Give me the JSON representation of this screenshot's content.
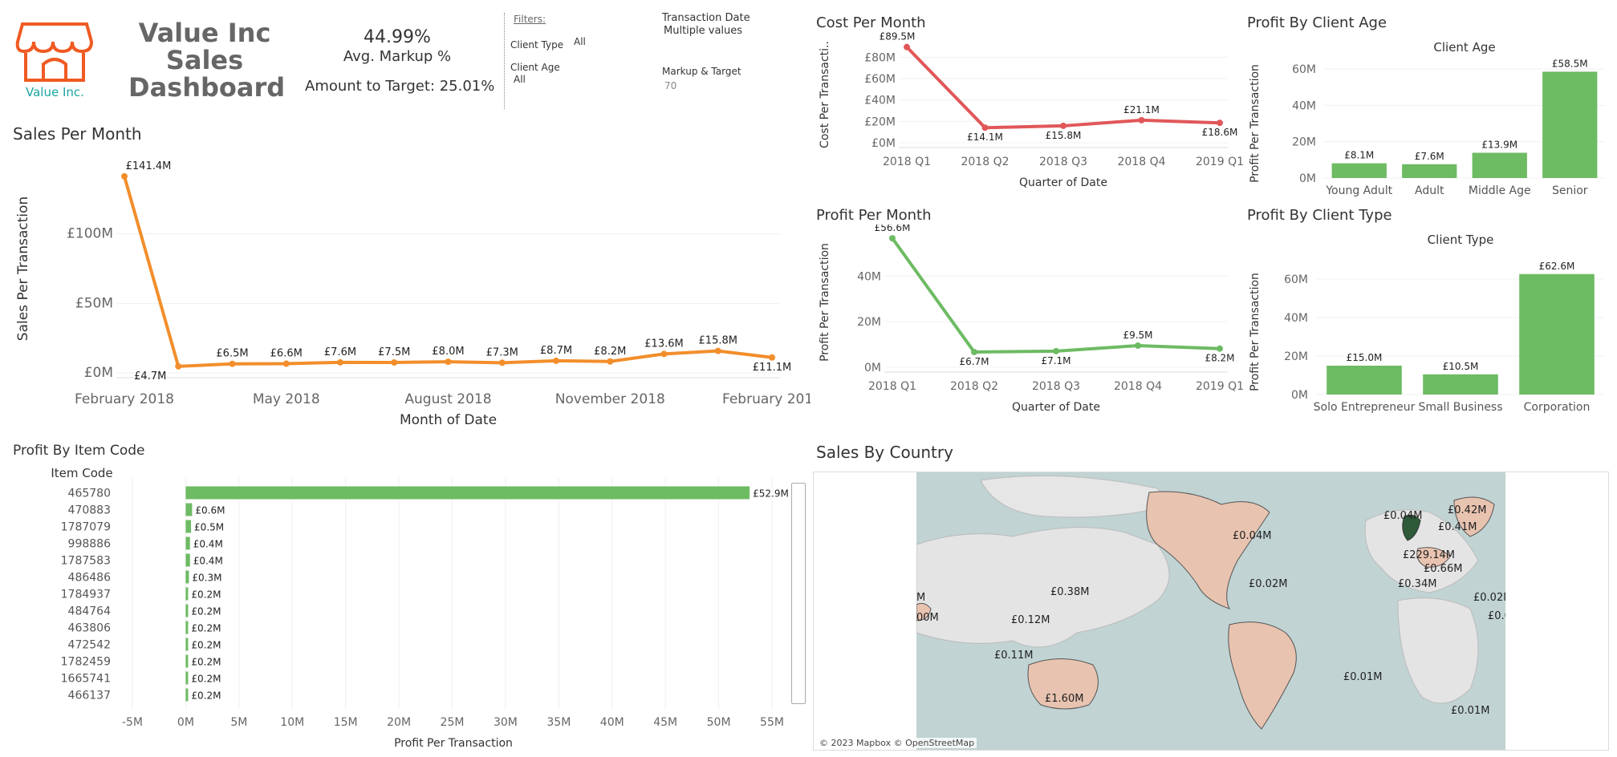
{
  "header": {
    "logo_text": "Value Inc.",
    "title_lines": [
      "Value Inc",
      "Sales",
      "Dashboard"
    ],
    "avg_markup_value": "44.99%",
    "avg_markup_label": "Avg. Markup %",
    "amount_to_target": "Amount to Target: 25.01%"
  },
  "filters": {
    "heading": "Filters:",
    "client_type_label": "Client Type",
    "client_type_value": "All",
    "client_age_label": "Client Age",
    "client_age_value": "All",
    "transaction_date_label": "Transaction Date",
    "transaction_date_value": "Multiple values",
    "markup_target_label": "Markup & Target",
    "markup_target_value": "70"
  },
  "colors": {
    "orange": "#f28e2b",
    "red": "#e15759",
    "green": "#6dbb63",
    "land": "#e8c3b0",
    "sea": "#c1d3d3",
    "dark_land": "#2e5a3a"
  },
  "chart_data": [
    {
      "id": "sales",
      "type": "line",
      "title": "Sales Per Month",
      "xlabel": "Month of Date",
      "ylabel": "Sales Per Transaction",
      "x": [
        "2018-02",
        "2018-03",
        "2018-04",
        "2018-05",
        "2018-06",
        "2018-07",
        "2018-08",
        "2018-09",
        "2018-10",
        "2018-11",
        "2018-12",
        "2019-01",
        "2019-02"
      ],
      "tick_labels": [
        "February 2018",
        "May 2018",
        "August 2018",
        "November 2018",
        "February 2019"
      ],
      "values": [
        141.4,
        4.7,
        6.5,
        6.6,
        7.6,
        7.5,
        8.0,
        7.3,
        8.7,
        8.2,
        13.6,
        15.8,
        11.1
      ],
      "point_labels": [
        "£141.4M",
        "£4.7M",
        "£6.5M",
        "£6.6M",
        "£7.6M",
        "£7.5M",
        "£8.0M",
        "£7.3M",
        "£8.7M",
        "£8.2M",
        "£13.6M",
        "£15.8M",
        "£11.1M"
      ],
      "yticks": [
        "£0M",
        "£50M",
        "£100M"
      ],
      "ylim": [
        0,
        150
      ]
    },
    {
      "id": "cost",
      "type": "line",
      "title": "Cost Per Month",
      "xlabel": "Quarter of Date",
      "ylabel": "Cost Per Transacti..",
      "categories": [
        "2018 Q1",
        "2018 Q2",
        "2018 Q3",
        "2018 Q4",
        "2019 Q1"
      ],
      "values": [
        89.5,
        14.1,
        15.8,
        21.1,
        18.6
      ],
      "point_labels": [
        "£89.5M",
        "£14.1M",
        "£15.8M",
        "£21.1M",
        "£18.6M"
      ],
      "yticks": [
        "£0M",
        "£20M",
        "£40M",
        "£60M",
        "£80M"
      ],
      "ylim": [
        0,
        90
      ]
    },
    {
      "id": "profit_month",
      "type": "line",
      "title": "Profit Per Month",
      "xlabel": "Quarter of Date",
      "ylabel": "Profit Per Transaction",
      "categories": [
        "2018 Q1",
        "2018 Q2",
        "2018 Q3",
        "2018 Q4",
        "2019 Q1"
      ],
      "values": [
        56.6,
        6.7,
        7.1,
        9.5,
        8.2
      ],
      "point_labels": [
        "£56.6M",
        "£6.7M",
        "£7.1M",
        "£9.5M",
        "£8.2M"
      ],
      "yticks": [
        "0M",
        "20M",
        "40M"
      ],
      "ylim": [
        0,
        57
      ]
    },
    {
      "id": "client_age",
      "type": "bar",
      "title": "Profit By Client Age",
      "header": "Client Age",
      "ylabel": "Profit Per Transaction",
      "categories": [
        "Young Adult",
        "Adult",
        "Middle Age",
        "Senior"
      ],
      "values": [
        8.1,
        7.6,
        13.9,
        58.5
      ],
      "point_labels": [
        "£8.1M",
        "£7.6M",
        "£13.9M",
        "£58.5M"
      ],
      "yticks": [
        "0M",
        "20M",
        "40M",
        "60M"
      ],
      "ylim": [
        0,
        60
      ]
    },
    {
      "id": "client_type",
      "type": "bar",
      "title": "Profit By Client Type",
      "header": "Client Type",
      "ylabel": "Profit Per Transaction",
      "categories": [
        "Solo Entrepreneur",
        "Small Business",
        "Corporation"
      ],
      "values": [
        15.0,
        10.5,
        62.6
      ],
      "point_labels": [
        "£15.0M",
        "£10.5M",
        "£62.6M"
      ],
      "yticks": [
        "0M",
        "20M",
        "40M",
        "60M"
      ],
      "ylim": [
        0,
        65
      ]
    },
    {
      "id": "item_code",
      "type": "bar",
      "orientation": "horizontal",
      "title": "Profit By Item Code",
      "header": "Item Code",
      "xlabel": "Profit Per Transaction",
      "categories": [
        "465780",
        "470883",
        "1787079",
        "998886",
        "1787583",
        "486486",
        "1784937",
        "484764",
        "463806",
        "472542",
        "1782459",
        "1665741",
        "466137"
      ],
      "values": [
        52.9,
        0.6,
        0.5,
        0.4,
        0.4,
        0.3,
        0.2,
        0.2,
        0.2,
        0.2,
        0.2,
        0.2,
        0.2
      ],
      "point_labels": [
        "£52.9M",
        "£0.6M",
        "£0.5M",
        "£0.4M",
        "£0.4M",
        "£0.3M",
        "£0.2M",
        "£0.2M",
        "£0.2M",
        "£0.2M",
        "£0.2M",
        "£0.2M",
        "£0.2M"
      ],
      "xticks": [
        "-5M",
        "0M",
        "5M",
        "10M",
        "15M",
        "20M",
        "25M",
        "30M",
        "35M",
        "40M",
        "45M",
        "50M",
        "55M"
      ],
      "xlim": [
        -5,
        55
      ]
    }
  ],
  "map": {
    "title": "Sales By Country",
    "credit": "© 2023 Mapbox © OpenStreetMap",
    "labels": [
      "£0.04M",
      "£0.02M",
      "£0.38M",
      "£0.12M",
      "£0.11M",
      "£1.60M",
      "£0.01M",
      "£0.01M",
      "£0.04M",
      "£0.42M",
      "£0.41M",
      "£229.14M",
      "£0.66M",
      "£0.34M",
      "£0.02M",
      "£0.0",
      "M",
      "00M"
    ]
  }
}
